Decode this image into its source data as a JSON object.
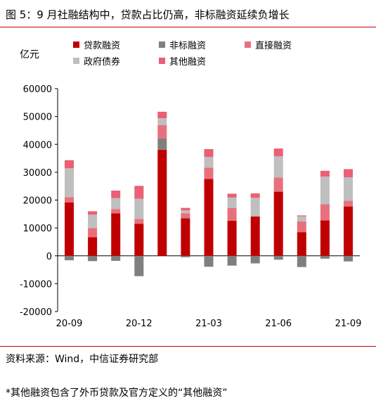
{
  "figure": {
    "title": "图 5：9 月社融结构中，贷款占比仍高，非标融资延续负增长",
    "source": "资料来源：Wind，中信证券研究部",
    "footnote": "*其他融资包含了外币贷款及官方定义的“其他融资”"
  },
  "colors": {
    "loans": "#c00000",
    "nonstandard": "#7f7f7f",
    "direct": "#e8707d",
    "government": "#bfbfbf",
    "other": "#ec5f74",
    "rule": "#c00000"
  },
  "chart_data": {
    "type": "bar",
    "stacked": true,
    "unit_label": "亿元",
    "categories": [
      "20-09",
      "20-10",
      "20-11",
      "20-12",
      "21-01",
      "21-02",
      "21-03",
      "21-04",
      "21-05",
      "21-06",
      "21-07",
      "21-08",
      "21-09"
    ],
    "x_tick_labels": [
      "20-09",
      "20-12",
      "21-03",
      "21-06",
      "21-09"
    ],
    "ylim": [
      -20000,
      60000
    ],
    "yticks": [
      -20000,
      -10000,
      0,
      10000,
      20000,
      30000,
      40000,
      50000,
      60000
    ],
    "legend_position": "top",
    "grid": false,
    "series": [
      {
        "name": "贷款融资",
        "color_key": "loans",
        "values": [
          19200,
          6700,
          15200,
          11500,
          38100,
          13500,
          27600,
          12600,
          14100,
          23000,
          8500,
          12700,
          17700
        ]
      },
      {
        "name": "非标融资",
        "color_key": "nonstandard",
        "values": [
          -1600,
          -1900,
          -1800,
          -7300,
          4000,
          -500,
          -3900,
          -3500,
          -2700,
          -1400,
          -4000,
          -1000,
          -2000
        ]
      },
      {
        "name": "直接融资",
        "color_key": "direct",
        "values": [
          1800,
          3200,
          1600,
          1700,
          4800,
          1800,
          4000,
          4500,
          100,
          5100,
          3800,
          5800,
          2100
        ]
      },
      {
        "name": "政府债券",
        "color_key": "government",
        "values": [
          10400,
          4900,
          3900,
          7300,
          2500,
          1000,
          3900,
          3800,
          6600,
          7600,
          1900,
          9900,
          8400
        ]
      },
      {
        "name": "其他融资",
        "color_key": "other",
        "values": [
          2900,
          1200,
          2700,
          4600,
          2300,
          900,
          2800,
          1400,
          1600,
          2800,
          300,
          2100,
          2900
        ]
      }
    ]
  }
}
